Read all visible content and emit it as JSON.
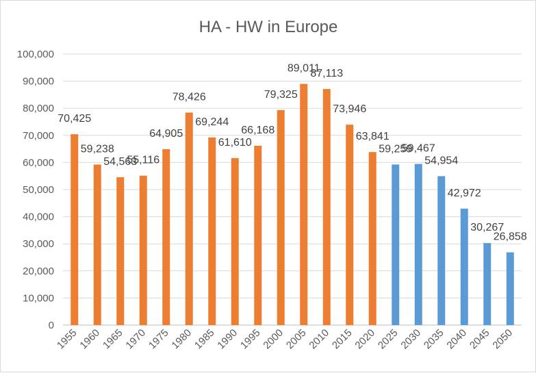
{
  "chart_data": {
    "type": "bar",
    "title": "HA - HW in Europe",
    "xlabel": "",
    "ylabel": "",
    "ylim": [
      0,
      100000
    ],
    "yticks": [
      "0",
      "10,000",
      "20,000",
      "30,000",
      "40,000",
      "50,000",
      "60,000",
      "70,000",
      "80,000",
      "90,000",
      "100,000"
    ],
    "grid": true,
    "legend": "none",
    "categories": [
      "1955",
      "1960",
      "1965",
      "1970",
      "1975",
      "1980",
      "1985",
      "1990",
      "1995",
      "2000",
      "2005",
      "2010",
      "2015",
      "2020",
      "2025",
      "2030",
      "2035",
      "2040",
      "2045",
      "2050"
    ],
    "values": [
      70425,
      59238,
      54563,
      55116,
      64905,
      78426,
      69244,
      61610,
      66168,
      79325,
      89011,
      87113,
      73946,
      63841,
      59259,
      59467,
      54954,
      42972,
      30267,
      26858
    ],
    "data_labels": [
      "70,425",
      "59,238",
      "54,563",
      "55,116",
      "64,905",
      "78,426",
      "69,244",
      "61,610",
      "66,168",
      "79,325",
      "89,011",
      "87,113",
      "73,946",
      "63,841",
      "59,259",
      "59,467",
      "54,954",
      "42,972",
      "30,267",
      "26,858"
    ],
    "bar_colors": [
      "#ed7d31",
      "#ed7d31",
      "#ed7d31",
      "#ed7d31",
      "#ed7d31",
      "#ed7d31",
      "#ed7d31",
      "#ed7d31",
      "#ed7d31",
      "#ed7d31",
      "#ed7d31",
      "#ed7d31",
      "#ed7d31",
      "#ed7d31",
      "#5b9bd5",
      "#5b9bd5",
      "#5b9bd5",
      "#5b9bd5",
      "#5b9bd5",
      "#5b9bd5"
    ]
  }
}
